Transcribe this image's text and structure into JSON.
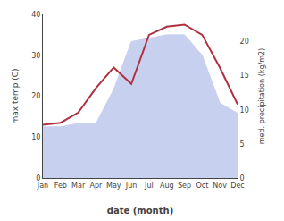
{
  "chart_data": {
    "type": "line",
    "x_label": "date (month)",
    "y_label": "max temp (C)",
    "y2_label": "med. precipitation (kg/m2)",
    "categories": [
      "Jan",
      "Feb",
      "Mar",
      "Apr",
      "May",
      "Jun",
      "Jul",
      "Aug",
      "Sep",
      "Oct",
      "Nov",
      "Dec"
    ],
    "series": [
      {
        "type": "area",
        "axis": "y2",
        "color": "#c8d0f0",
        "values": [
          7.5,
          7.5,
          8.0,
          8.0,
          13.0,
          20.0,
          20.5,
          21.0,
          21.0,
          18.0,
          11.0,
          9.5
        ]
      },
      {
        "type": "line",
        "color": "#b03040",
        "values": [
          13.0,
          13.5,
          16.0,
          22.0,
          27.0,
          23.0,
          35.0,
          37.0,
          37.5,
          35.0,
          27.0,
          18.0
        ]
      }
    ],
    "ylim": [
      0,
      40
    ],
    "yticks": [
      0,
      10,
      20,
      30,
      40
    ],
    "y2lim": [
      0,
      24
    ],
    "y2ticks": [
      0,
      5,
      10,
      15,
      20
    ],
    "grid": false
  }
}
